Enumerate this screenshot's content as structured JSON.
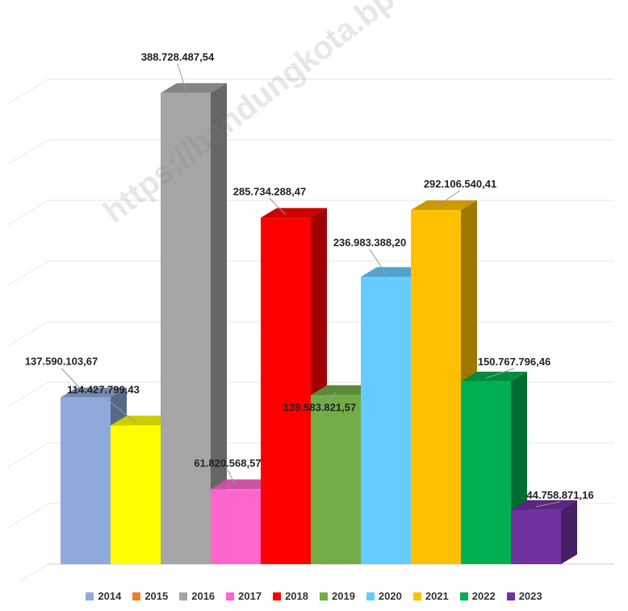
{
  "watermark": "https://bandungkota.bps.go.id",
  "chart_data": {
    "type": "bar",
    "title": "",
    "xlabel": "",
    "ylabel": "",
    "ylim": [
      0,
      400000000
    ],
    "grid": true,
    "legend_position": "bottom",
    "series": [
      {
        "name": "2014",
        "value": 137590103.67,
        "label": "137.590.103,67",
        "color": "#8eaadb"
      },
      {
        "name": "2015",
        "value": 0,
        "label": "",
        "color": "#ed7d31"
      },
      {
        "name": "2016",
        "value": 388728487.54,
        "label": "388.728.487,54",
        "color": "#a5a5a5"
      },
      {
        "name": "2017",
        "value": 61820568.57,
        "label": "61.820.568,57",
        "color": "#ff66cc"
      },
      {
        "name": "2018",
        "value": 285734288.47,
        "label": "285.734.288,47",
        "color": "#ff0000"
      },
      {
        "name": "2019",
        "value": 139583821.57,
        "label": "139.583.821,57",
        "color": "#70ad47"
      },
      {
        "name": "2020",
        "value": 236983388.2,
        "label": "236.983.388,20",
        "color": "#66ccff"
      },
      {
        "name": "2021",
        "value": 292106540.41,
        "label": "292.106.540,41",
        "color": "#ffc000"
      },
      {
        "name": "2022",
        "value": 150767796.46,
        "label": "150.767.796,46",
        "color": "#00b050"
      },
      {
        "name": "2023",
        "value": 44758871.16,
        "label": "44.758.871,16",
        "color": "#7030a0"
      }
    ],
    "extra_bars": [
      {
        "name": "yellow",
        "value": 114427799.43,
        "label": "114.427.799,43",
        "color": "#ffff00"
      }
    ]
  }
}
